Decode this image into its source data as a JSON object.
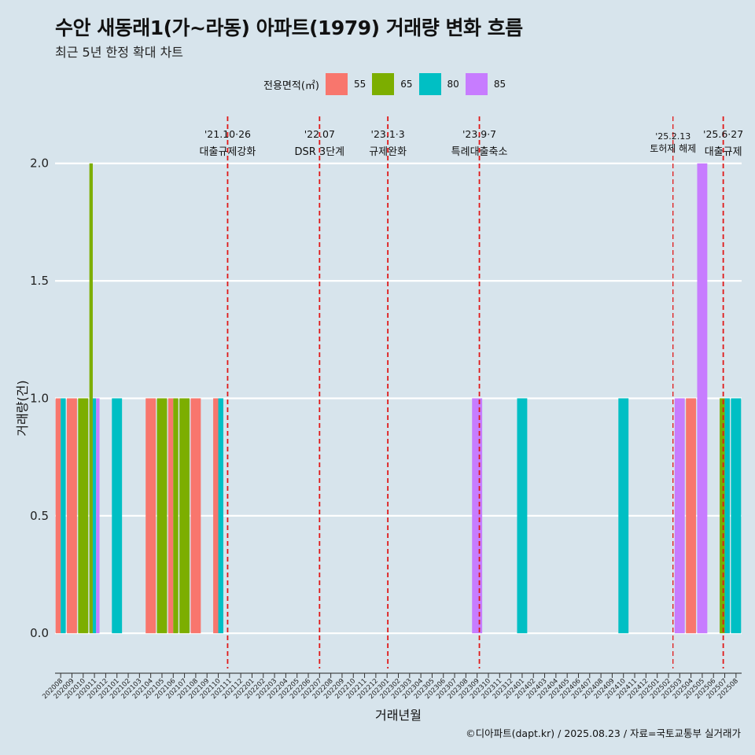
{
  "title": "수안 새동래1(가~라동) 아파트(1979) 거래량 변화 흐름",
  "subtitle": "최근 5년 한정 확대 차트",
  "caption": "©디아파트(dapt.kr) / 2025.08.23 / 자료=국토교통부 실거래가",
  "legend": {
    "title": "전용면적(㎡)",
    "items": [
      {
        "label": "55",
        "color": "#f8766d"
      },
      {
        "label": "65",
        "color": "#7cae00"
      },
      {
        "label": "80",
        "color": "#00bfc4"
      },
      {
        "label": "85",
        "color": "#c77cff"
      }
    ]
  },
  "chart_data": {
    "type": "bar",
    "title": "수안 새동래1(가~라동) 아파트(1979) 거래량 변화 흐름",
    "xlabel": "거래년월",
    "ylabel": "거래량(건)",
    "ylim": [
      -0.15,
      2.2
    ],
    "yticks": [
      "0.0",
      "0.5",
      "1.0",
      "1.5",
      "2.0"
    ],
    "grid": true,
    "legend_position": "top",
    "categories": [
      "202008",
      "202009",
      "202010",
      "202011",
      "202012",
      "202101",
      "202102",
      "202103",
      "202104",
      "202105",
      "202106",
      "202107",
      "202108",
      "202109",
      "202110",
      "202111",
      "202112",
      "202201",
      "202202",
      "202203",
      "202204",
      "202205",
      "202206",
      "202207",
      "202208",
      "202209",
      "202210",
      "202211",
      "202212",
      "202301",
      "202302",
      "202303",
      "202304",
      "202305",
      "202306",
      "202307",
      "202308",
      "202309",
      "202310",
      "202311",
      "202312",
      "202401",
      "202402",
      "202403",
      "202404",
      "202405",
      "202406",
      "202407",
      "202408",
      "202409",
      "202410",
      "202411",
      "202412",
      "202501",
      "202502",
      "202503",
      "202504",
      "202505",
      "202506",
      "202507",
      "202508"
    ],
    "series": [
      {
        "name": "55",
        "color": "#f8766d",
        "values": [
          1,
          1,
          0,
          0,
          0,
          0,
          0,
          0,
          1,
          0,
          1,
          0,
          1,
          0,
          1,
          0,
          0,
          0,
          0,
          0,
          0,
          0,
          0,
          0,
          0,
          0,
          0,
          0,
          0,
          0,
          0,
          0,
          0,
          0,
          0,
          0,
          0,
          0,
          0,
          0,
          0,
          0,
          0,
          0,
          0,
          0,
          0,
          0,
          0,
          0,
          0,
          0,
          0,
          0,
          0,
          0,
          1,
          0,
          0,
          0,
          0
        ]
      },
      {
        "name": "65",
        "color": "#7cae00",
        "values": [
          0,
          0,
          1,
          2,
          0,
          0,
          0,
          0,
          0,
          1,
          1,
          1,
          0,
          0,
          0,
          0,
          0,
          0,
          0,
          0,
          0,
          0,
          0,
          0,
          0,
          0,
          0,
          0,
          0,
          0,
          0,
          0,
          0,
          0,
          0,
          0,
          0,
          0,
          0,
          0,
          0,
          0,
          0,
          0,
          0,
          0,
          0,
          0,
          0,
          0,
          0,
          0,
          0,
          0,
          0,
          0,
          0,
          0,
          0,
          1,
          0
        ]
      },
      {
        "name": "80",
        "color": "#00bfc4",
        "values": [
          1,
          0,
          0,
          1,
          0,
          1,
          0,
          0,
          0,
          0,
          0,
          0,
          0,
          0,
          1,
          0,
          0,
          0,
          0,
          0,
          0,
          0,
          0,
          0,
          0,
          0,
          0,
          0,
          0,
          0,
          0,
          0,
          0,
          0,
          0,
          0,
          0,
          0,
          0,
          0,
          0,
          1,
          0,
          0,
          0,
          0,
          0,
          0,
          0,
          0,
          1,
          0,
          0,
          0,
          0,
          0,
          0,
          0,
          0,
          1,
          1
        ]
      },
      {
        "name": "85",
        "color": "#c77cff",
        "values": [
          0,
          0,
          0,
          1,
          0,
          0,
          0,
          0,
          0,
          0,
          0,
          0,
          0,
          0,
          0,
          0,
          0,
          0,
          0,
          0,
          0,
          0,
          0,
          0,
          0,
          0,
          0,
          0,
          0,
          0,
          0,
          0,
          0,
          0,
          0,
          0,
          0,
          1,
          0,
          0,
          0,
          0,
          0,
          0,
          0,
          0,
          0,
          0,
          0,
          0,
          0,
          0,
          0,
          0,
          0,
          1,
          0,
          2,
          0,
          0,
          0
        ]
      }
    ],
    "annotations": [
      {
        "date": "2021-10-26",
        "line1": "'21.10·26",
        "line2": "대출규제강화"
      },
      {
        "date": "2022-07-01",
        "line1": "'22.07",
        "line2": "DSR 3단계"
      },
      {
        "date": "2023-01-03",
        "line1": "'23.1·3",
        "line2": "규제완화"
      },
      {
        "date": "2023-09-07",
        "line1": "'23.9·7",
        "line2": "특례대출축소"
      },
      {
        "date": "2025-02-13",
        "line1": "'25.2.13",
        "line2": "토허제 해제"
      },
      {
        "date": "2025-06-27",
        "line1": "'25.6·27",
        "line2": "대출규제"
      }
    ]
  }
}
